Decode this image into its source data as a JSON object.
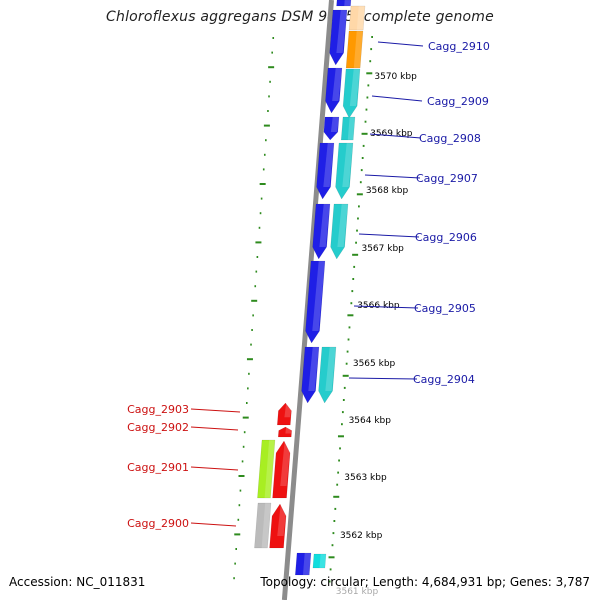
{
  "title": "Chloroflexus aggregans DSM 9485, complete genome",
  "footer": {
    "accession": "Accession: NC_011831",
    "stats": "Topology: circular; Length: 4,684,931 bp; Genes: 3,787"
  },
  "colors": {
    "backbone": "#8c8c8c",
    "tick": "#2e8b1e",
    "forward_label": "#1a1aa6",
    "reverse_label": "#cc1111",
    "cds_blue": "#1f1fe6",
    "cds_cyan": "#25cccc",
    "cds_orange": "#ff9900",
    "cds_red": "#ee1111",
    "cds_lime": "#a8ee22",
    "cds_grey": "#bbbbbb"
  },
  "scale_labels": [
    "3570 kbp",
    "3569 kbp",
    "3568 kbp",
    "3567 kbp",
    "3566 kbp",
    "3565 kbp",
    "3564 kbp",
    "3563 kbp",
    "3562 kbp",
    "3561 kbp"
  ],
  "forward_genes": [
    "Cagg_2910",
    "Cagg_2909",
    "Cagg_2908",
    "Cagg_2907",
    "Cagg_2906",
    "Cagg_2905",
    "Cagg_2904"
  ],
  "reverse_genes": [
    "Cagg_2903",
    "Cagg_2902",
    "Cagg_2901",
    "Cagg_2900"
  ]
}
